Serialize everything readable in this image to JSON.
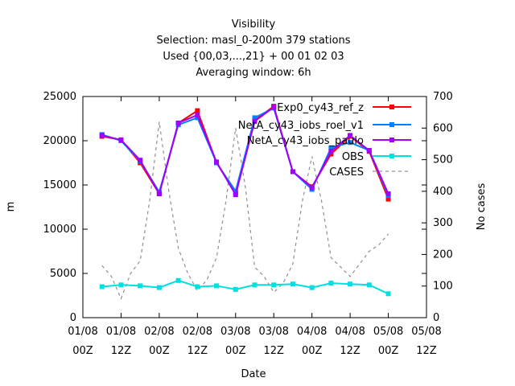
{
  "chart_data": {
    "type": "line",
    "title_lines": [
      "Visibility",
      "Selection: masl_0-200m    379 stations",
      "Used {00,03,...,21} + 00 01 02 03",
      "Averaging window:  6h"
    ],
    "xlabel": "Date",
    "ylabel": "m",
    "y2label": "No cases",
    "x_unit": "hours",
    "xlim": [
      0,
      108
    ],
    "ylim": [
      0,
      25000
    ],
    "y2lim": [
      0,
      700
    ],
    "x_ticks": [
      {
        "x": 0,
        "line1": "01/08",
        "line2": "00Z"
      },
      {
        "x": 12,
        "line1": "01/08",
        "line2": "12Z"
      },
      {
        "x": 24,
        "line1": "02/08",
        "line2": "00Z"
      },
      {
        "x": 36,
        "line1": "02/08",
        "line2": "12Z"
      },
      {
        "x": 48,
        "line1": "03/08",
        "line2": "00Z"
      },
      {
        "x": 60,
        "line1": "03/08",
        "line2": "12Z"
      },
      {
        "x": 72,
        "line1": "04/08",
        "line2": "00Z"
      },
      {
        "x": 84,
        "line1": "04/08",
        "line2": "12Z"
      },
      {
        "x": 96,
        "line1": "05/08",
        "line2": "00Z"
      },
      {
        "x": 108,
        "line1": "05/08",
        "line2": "12Z"
      }
    ],
    "y_ticks": [
      "0",
      "5000",
      "10000",
      "15000",
      "20000",
      "25000"
    ],
    "y2_ticks": [
      "0",
      "100",
      "200",
      "300",
      "400",
      "500",
      "600",
      "700"
    ],
    "grid": false,
    "legend_position": "top-right",
    "x": [
      6,
      12,
      18,
      24,
      30,
      36,
      42,
      48,
      54,
      60,
      66,
      72,
      78,
      84,
      90,
      96
    ],
    "series": [
      {
        "name": "Exp0_cy43_ref_z",
        "color": "#ff0000",
        "marker": "square",
        "axis": "y1",
        "values": [
          20500,
          20100,
          17500,
          14000,
          22000,
          23400,
          17500,
          14100,
          22300,
          23900,
          16500,
          14800,
          18500,
          20500,
          18800,
          13400
        ]
      },
      {
        "name": "NetA_cy43_iobs_roel_v1",
        "color": "#0080ff",
        "marker": "square",
        "axis": "y1",
        "values": [
          20700,
          20000,
          17700,
          14200,
          21800,
          22600,
          17500,
          14300,
          22600,
          23700,
          16500,
          14500,
          19200,
          19800,
          18900,
          13800
        ]
      },
      {
        "name": "NetA_cy43_iobs_paulo",
        "color": "#a000ff",
        "marker": "square",
        "axis": "y1",
        "values": [
          20600,
          20100,
          17800,
          14000,
          22000,
          22900,
          17600,
          13900,
          22200,
          23800,
          16500,
          14700,
          18800,
          20600,
          18900,
          14000
        ]
      },
      {
        "name": "OBS",
        "color": "#00e0e0",
        "marker": "square",
        "axis": "y1",
        "values": [
          3500,
          3700,
          3600,
          3400,
          4200,
          3500,
          3600,
          3200,
          3700,
          3700,
          3800,
          3400,
          3900,
          3800,
          3700,
          2700
        ]
      },
      {
        "name": "CASES",
        "color": "#909090",
        "marker": "none",
        "dashed": true,
        "axis": "y2",
        "x": [
          6,
          9,
          12,
          15,
          18,
          21,
          24,
          27,
          30,
          33,
          36,
          39,
          42,
          45,
          48,
          51,
          54,
          57,
          60,
          63,
          66,
          69,
          72,
          75,
          78,
          81,
          84,
          87,
          90,
          93,
          96
        ],
        "values": [
          165,
          130,
          60,
          140,
          180,
          370,
          620,
          400,
          220,
          140,
          85,
          120,
          190,
          370,
          600,
          420,
          160,
          130,
          80,
          110,
          170,
          370,
          510,
          370,
          190,
          160,
          130,
          170,
          210,
          230,
          265
        ]
      }
    ]
  }
}
